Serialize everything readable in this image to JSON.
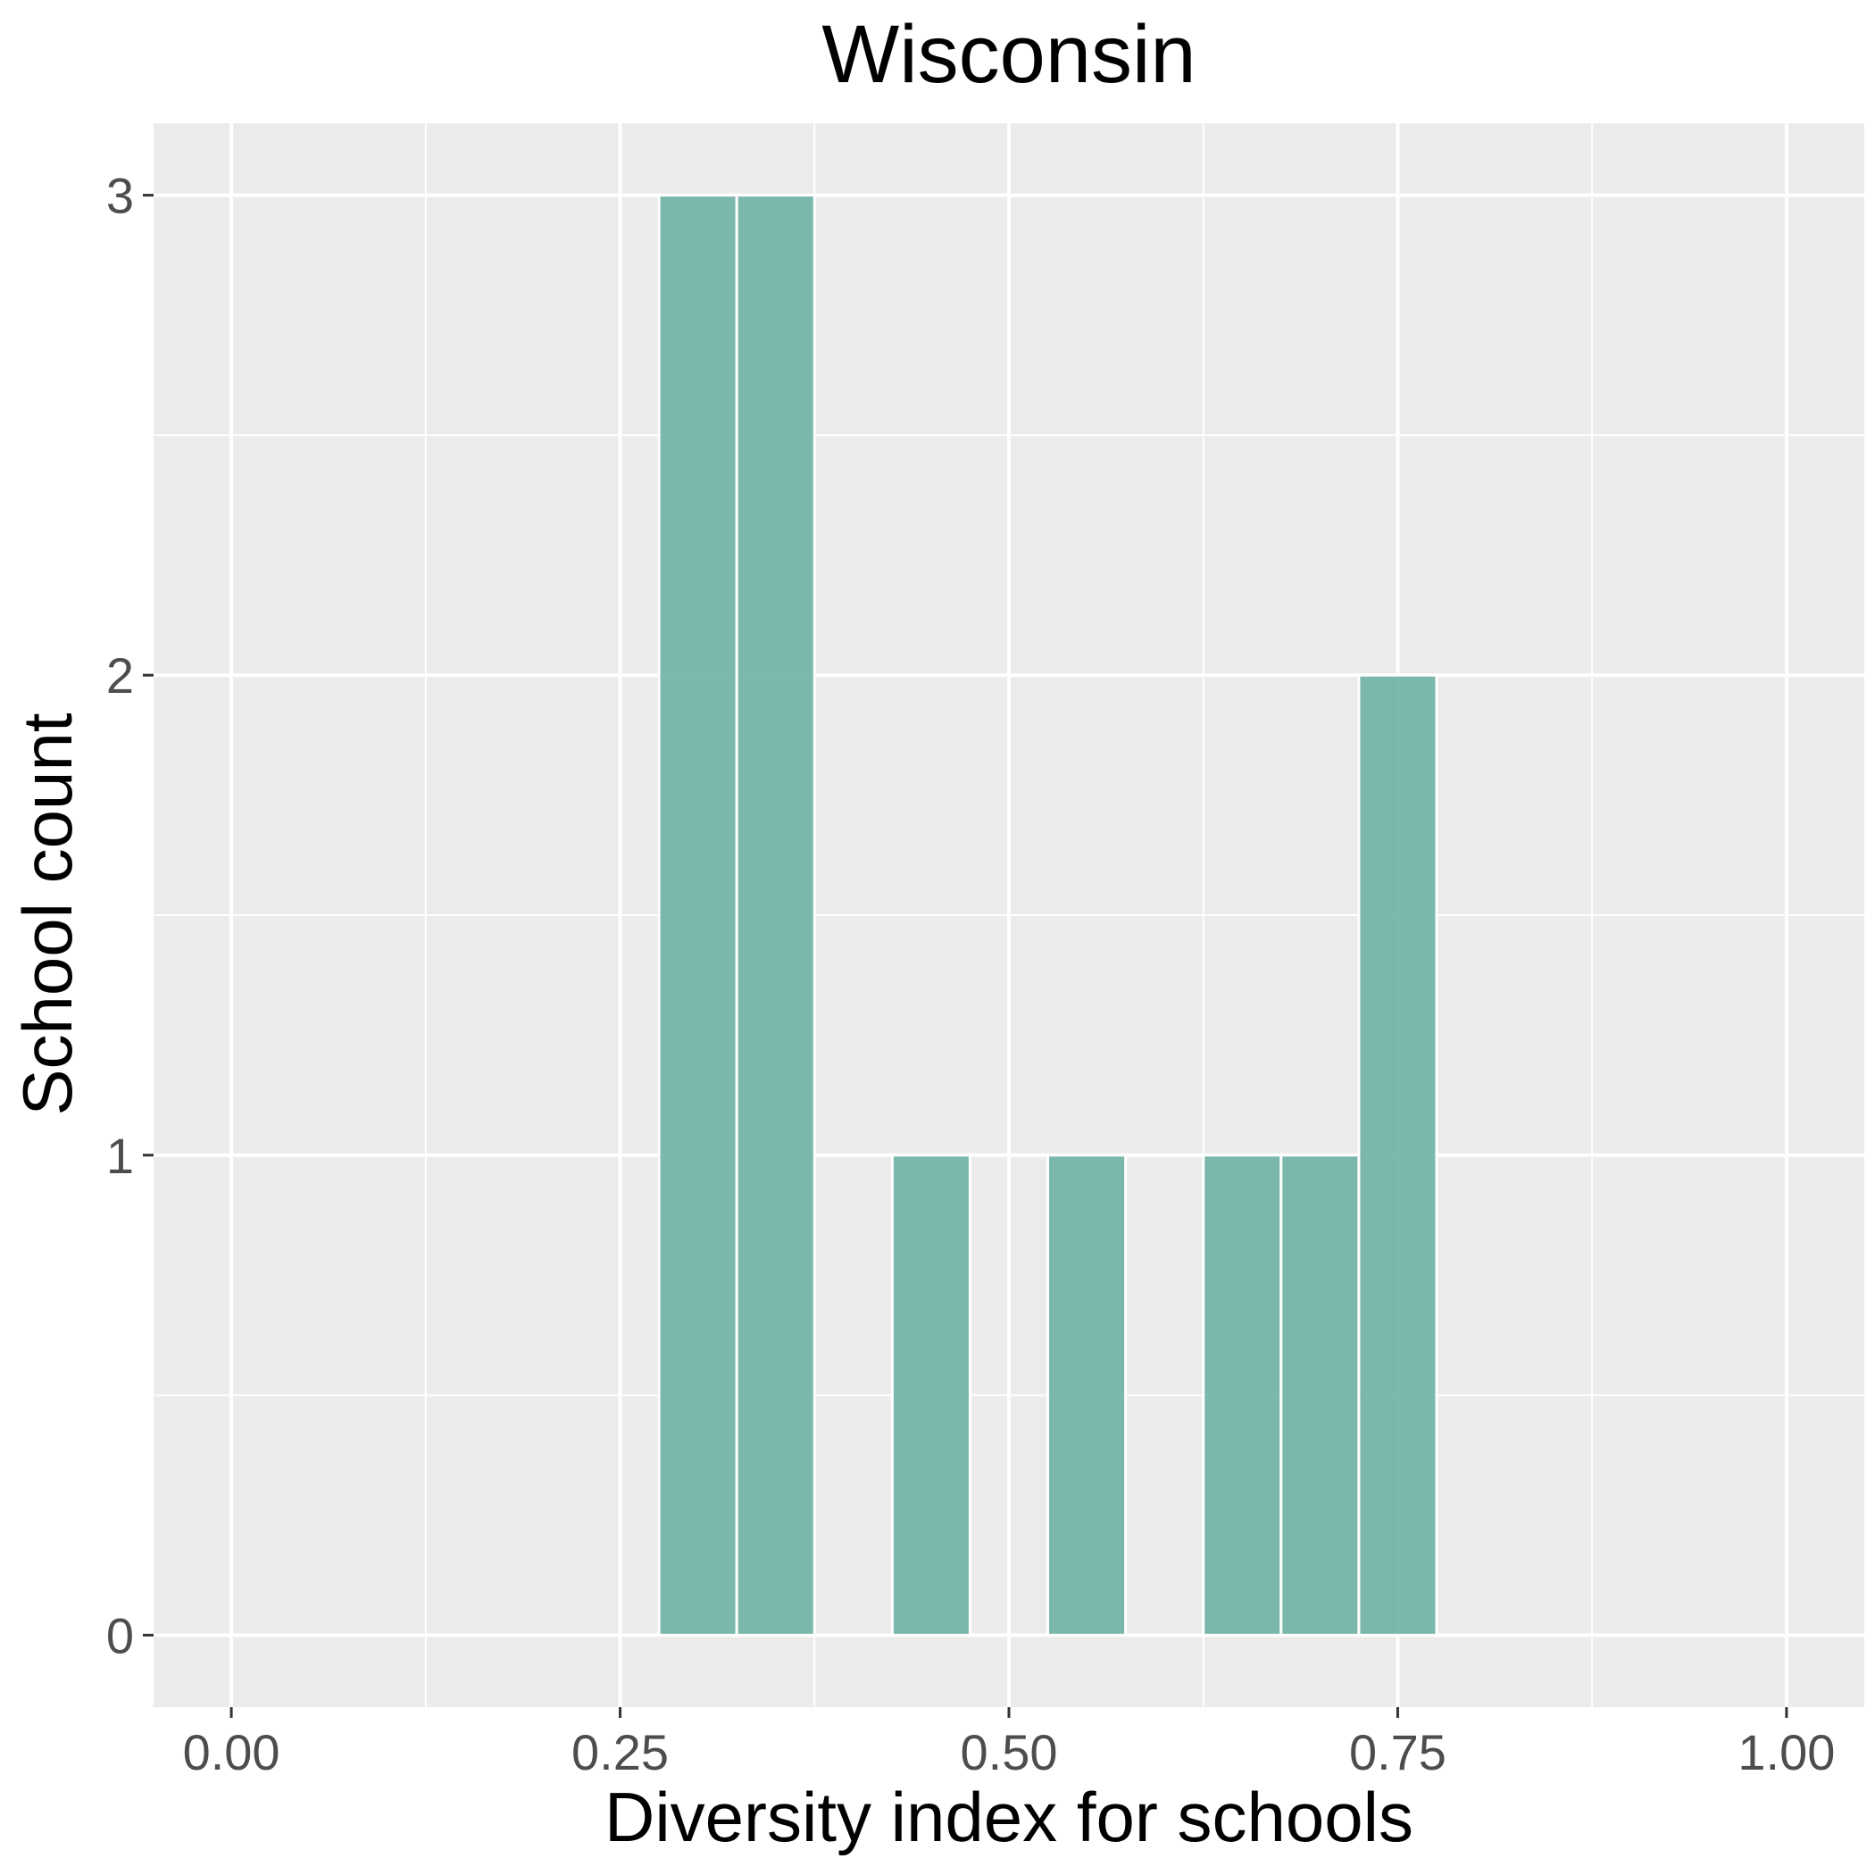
{
  "chart_data": {
    "type": "bar",
    "title": "Wisconsin",
    "xlabel": "Diversity index for schools",
    "ylabel": "School count",
    "bin_width": 0.05,
    "bins": [
      {
        "x": 0.3,
        "count": 3
      },
      {
        "x": 0.35,
        "count": 3
      },
      {
        "x": 0.45,
        "count": 1
      },
      {
        "x": 0.55,
        "count": 1
      },
      {
        "x": 0.65,
        "count": 1
      },
      {
        "x": 0.7,
        "count": 1
      },
      {
        "x": 0.75,
        "count": 2
      }
    ],
    "xlim": [
      -0.05,
      1.05
    ],
    "ylim": [
      -0.15,
      3.15
    ],
    "x_ticks": [
      {
        "value": 0.0,
        "label": "0.00"
      },
      {
        "value": 0.25,
        "label": "0.25"
      },
      {
        "value": 0.5,
        "label": "0.50"
      },
      {
        "value": 0.75,
        "label": "0.75"
      },
      {
        "value": 1.0,
        "label": "1.00"
      }
    ],
    "y_ticks": [
      {
        "value": 0,
        "label": "0"
      },
      {
        "value": 1,
        "label": "1"
      },
      {
        "value": 2,
        "label": "2"
      },
      {
        "value": 3,
        "label": "3"
      }
    ],
    "grid": true,
    "colors": {
      "bar": "#6fb3a4",
      "panel": "#ebebeb",
      "grid": "#ffffff"
    }
  }
}
